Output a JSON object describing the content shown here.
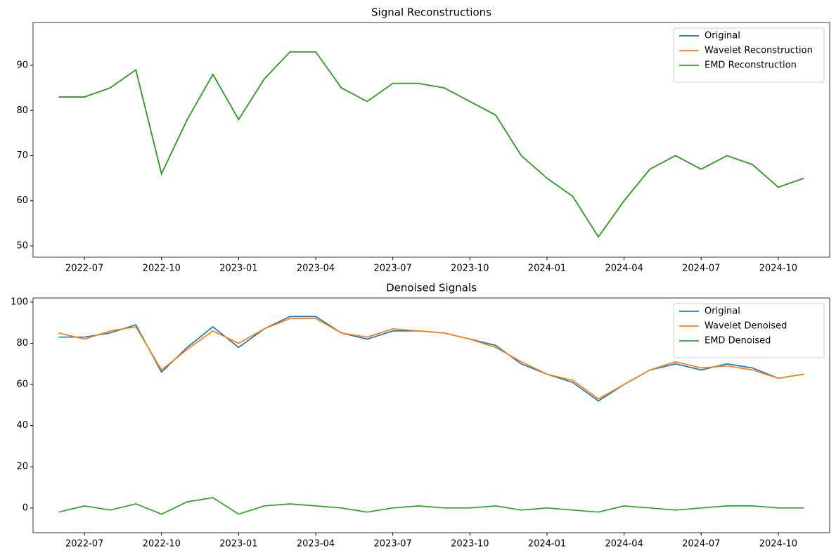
{
  "chart_data": [
    {
      "type": "line",
      "title": "Signal Reconstructions",
      "x": [
        "2022-06",
        "2022-07",
        "2022-08",
        "2022-09",
        "2022-10",
        "2022-11",
        "2022-12",
        "2023-01",
        "2023-02",
        "2023-03",
        "2023-04",
        "2023-05",
        "2023-06",
        "2023-07",
        "2023-08",
        "2023-09",
        "2023-10",
        "2023-11",
        "2023-12",
        "2024-01",
        "2024-02",
        "2024-03",
        "2024-04",
        "2024-05",
        "2024-06",
        "2024-07",
        "2024-08",
        "2024-09",
        "2024-10",
        "2024-11"
      ],
      "series": [
        {
          "name": "Original",
          "color": "#1f77b4",
          "values": [
            83,
            83,
            85,
            89,
            66,
            78,
            88,
            78,
            87,
            93,
            93,
            85,
            82,
            86,
            86,
            85,
            82,
            79,
            70,
            65,
            61,
            52,
            60,
            67,
            70,
            67,
            70,
            68,
            63,
            65
          ]
        },
        {
          "name": "Wavelet Reconstruction",
          "color": "#ff7f0e",
          "values": [
            83,
            83,
            85,
            89,
            66,
            78,
            88,
            78,
            87,
            93,
            93,
            85,
            82,
            86,
            86,
            85,
            82,
            79,
            70,
            65,
            61,
            52,
            60,
            67,
            70,
            67,
            70,
            68,
            63,
            65
          ]
        },
        {
          "name": "EMD Reconstruction",
          "color": "#2ca02c",
          "values": [
            83,
            83,
            85,
            89,
            66,
            78,
            88,
            78,
            87,
            93,
            93,
            85,
            82,
            86,
            86,
            85,
            82,
            79,
            70,
            65,
            61,
            52,
            60,
            67,
            70,
            67,
            70,
            68,
            63,
            65
          ]
        }
      ],
      "xlim": [
        "2022-05",
        "2024-12"
      ],
      "xticks": [
        "2022-07",
        "2022-10",
        "2023-01",
        "2023-04",
        "2023-07",
        "2023-10",
        "2024-01",
        "2024-04",
        "2024-07",
        "2024-10"
      ],
      "ylim": [
        47.5,
        99.5
      ],
      "yticks": [
        50,
        60,
        70,
        80,
        90
      ],
      "legend": "upper-right"
    },
    {
      "type": "line",
      "title": "Denoised Signals",
      "x": [
        "2022-06",
        "2022-07",
        "2022-08",
        "2022-09",
        "2022-10",
        "2022-11",
        "2022-12",
        "2023-01",
        "2023-02",
        "2023-03",
        "2023-04",
        "2023-05",
        "2023-06",
        "2023-07",
        "2023-08",
        "2023-09",
        "2023-10",
        "2023-11",
        "2023-12",
        "2024-01",
        "2024-02",
        "2024-03",
        "2024-04",
        "2024-05",
        "2024-06",
        "2024-07",
        "2024-08",
        "2024-09",
        "2024-10",
        "2024-11"
      ],
      "series": [
        {
          "name": "Original",
          "color": "#1f77b4",
          "values": [
            83,
            83,
            85,
            89,
            66,
            78,
            88,
            78,
            87,
            93,
            93,
            85,
            82,
            86,
            86,
            85,
            82,
            79,
            70,
            65,
            61,
            52,
            60,
            67,
            70,
            67,
            70,
            68,
            63,
            65
          ]
        },
        {
          "name": "Wavelet Denoised",
          "color": "#ff7f0e",
          "values": [
            85,
            82,
            86,
            88,
            67,
            77,
            86,
            80,
            87,
            92,
            92,
            85,
            83,
            87,
            86,
            85,
            82,
            78,
            71,
            65,
            62,
            53,
            60,
            67,
            71,
            68,
            69,
            67,
            63,
            65
          ]
        },
        {
          "name": "EMD Denoised",
          "color": "#2ca02c",
          "values": [
            -2,
            1,
            -1,
            2,
            -3,
            3,
            5,
            -3,
            1,
            2,
            1,
            0,
            -2,
            0,
            1,
            0,
            0,
            1,
            -1,
            0,
            -1,
            -2,
            1,
            0,
            -1,
            0,
            1,
            1,
            0,
            0
          ]
        }
      ],
      "xlim": [
        "2022-05",
        "2024-12"
      ],
      "xticks": [
        "2022-07",
        "2022-10",
        "2023-01",
        "2023-04",
        "2023-07",
        "2023-10",
        "2024-01",
        "2024-04",
        "2024-07",
        "2024-10"
      ],
      "ylim": [
        -12,
        102
      ],
      "yticks": [
        0,
        20,
        40,
        60,
        80,
        100
      ],
      "legend": "upper-right"
    }
  ]
}
